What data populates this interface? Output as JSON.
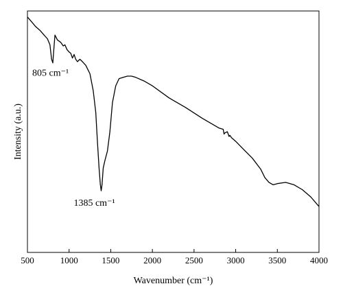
{
  "chart_data": {
    "type": "line",
    "title": "",
    "xlabel": "Wavenumber (cm⁻¹)",
    "ylabel": "Intensity (a.u.)",
    "xlim": [
      500,
      4000
    ],
    "ylim": [
      0,
      1
    ],
    "y_ticks_shown": false,
    "grid": false,
    "x_ticks": [
      500,
      1000,
      1500,
      2000,
      2500,
      3000,
      3500,
      4000
    ],
    "x_tick_labels": [
      "500",
      "1000",
      "1500",
      "2000",
      "2500",
      "3000",
      "3500",
      "4000"
    ],
    "annotations": [
      {
        "text": "805 cm⁻¹",
        "x": 805,
        "y": 0.8
      },
      {
        "text": "1385 cm⁻¹",
        "x": 1385,
        "y": 0.25
      }
    ],
    "series": [
      {
        "x": [
          500,
          550,
          600,
          650,
          700,
          740,
          770,
          790,
          805,
          815,
          830,
          860,
          900,
          930,
          950,
          975,
          1000,
          1020,
          1040,
          1060,
          1080,
          1100,
          1130,
          1160,
          1200,
          1250,
          1290,
          1320,
          1340,
          1360,
          1375,
          1385,
          1395,
          1410,
          1430,
          1460,
          1490,
          1520,
          1560,
          1600,
          1650,
          1700,
          1750,
          1800,
          1900,
          2000,
          2200,
          2400,
          2600,
          2800,
          2850,
          2860,
          2870,
          2900,
          2920,
          2930,
          2950,
          3000,
          3100,
          3200,
          3300,
          3350,
          3400,
          3450,
          3500,
          3600,
          3700,
          3800,
          3900,
          4000
        ],
        "y": [
          0.975,
          0.955,
          0.935,
          0.92,
          0.9,
          0.885,
          0.86,
          0.8,
          0.785,
          0.835,
          0.9,
          0.88,
          0.87,
          0.855,
          0.86,
          0.84,
          0.83,
          0.825,
          0.805,
          0.82,
          0.8,
          0.79,
          0.8,
          0.79,
          0.775,
          0.74,
          0.67,
          0.58,
          0.46,
          0.35,
          0.28,
          0.255,
          0.28,
          0.35,
          0.38,
          0.42,
          0.5,
          0.62,
          0.69,
          0.72,
          0.725,
          0.73,
          0.73,
          0.725,
          0.71,
          0.69,
          0.64,
          0.6,
          0.555,
          0.515,
          0.51,
          0.49,
          0.495,
          0.5,
          0.48,
          0.485,
          0.475,
          0.46,
          0.425,
          0.39,
          0.345,
          0.31,
          0.29,
          0.28,
          0.285,
          0.29,
          0.28,
          0.26,
          0.23,
          0.19
        ]
      }
    ]
  }
}
